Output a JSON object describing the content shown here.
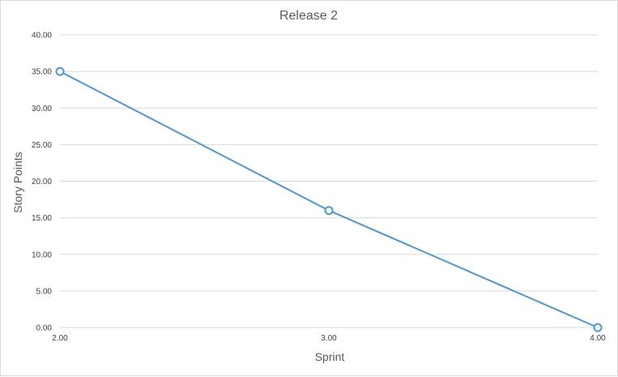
{
  "chart_data": {
    "type": "scatter",
    "title": "Release 2",
    "xlabel": "Sprint",
    "ylabel": "Story Points",
    "xlim": [
      2,
      4
    ],
    "ylim": [
      0,
      40
    ],
    "xticks": [
      "2.00",
      "3.00",
      "4.00"
    ],
    "yticks": [
      "0.00",
      "5.00",
      "10.00",
      "15.00",
      "20.00",
      "25.00",
      "30.00",
      "35.00",
      "40.00"
    ],
    "grid": true,
    "series": [
      {
        "x": [
          2,
          3,
          4
        ],
        "y": [
          35,
          16,
          0
        ]
      }
    ],
    "colors": {
      "line": "#4a98d8",
      "marker_fill": "#ffffff"
    }
  }
}
